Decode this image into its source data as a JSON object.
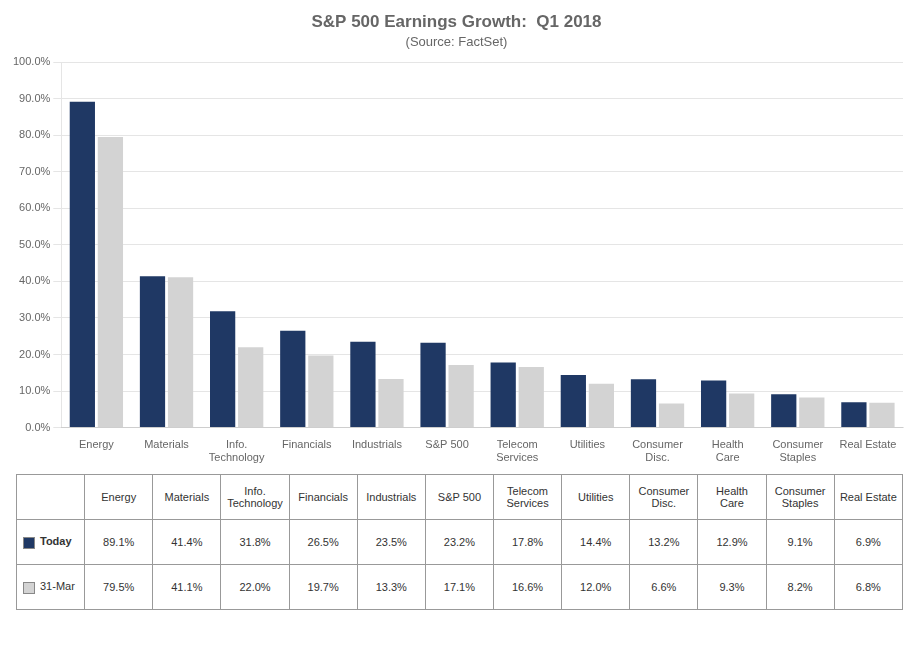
{
  "chart_data": {
    "type": "bar",
    "title": "S&P 500 Earnings Growth:  Q1 2018",
    "subtitle": "(Source: FactSet)",
    "categories": [
      "Energy",
      "Materials",
      "Info.\nTechnology",
      "Financials",
      "Industrials",
      "S&P 500",
      "Telecom\nServices",
      "Utilities",
      "Consumer\nDisc.",
      "Health\nCare",
      "Consumer\nStaples",
      "Real Estate"
    ],
    "series": [
      {
        "name": "Today",
        "color": "#1F3864",
        "values": [
          89.1,
          41.4,
          31.8,
          26.5,
          23.5,
          23.2,
          17.8,
          14.4,
          13.2,
          12.9,
          9.1,
          6.9
        ],
        "value_labels": [
          "89.1%",
          "41.4%",
          "31.8%",
          "26.5%",
          "23.5%",
          "23.2%",
          "17.8%",
          "14.4%",
          "13.2%",
          "12.9%",
          "9.1%",
          "6.9%"
        ]
      },
      {
        "name": "31-Mar",
        "color": "#D3D3D3",
        "values": [
          79.5,
          41.1,
          22.0,
          19.7,
          13.3,
          17.1,
          16.6,
          12.0,
          6.6,
          9.3,
          8.2,
          6.8
        ],
        "value_labels": [
          "79.5%",
          "41.1%",
          "22.0%",
          "19.7%",
          "13.3%",
          "17.1%",
          "16.6%",
          "12.0%",
          "6.6%",
          "9.3%",
          "8.2%",
          "6.8%"
        ]
      }
    ],
    "ylim": [
      0,
      100
    ],
    "yticks": [
      {
        "value": 0,
        "label": "0.0%"
      },
      {
        "value": 10,
        "label": "10.0%"
      },
      {
        "value": 20,
        "label": "20.0%"
      },
      {
        "value": 30,
        "label": "30.0%"
      },
      {
        "value": 40,
        "label": "40.0%"
      },
      {
        "value": 50,
        "label": "50.0%"
      },
      {
        "value": 60,
        "label": "60.0%"
      },
      {
        "value": 70,
        "label": "70.0%"
      },
      {
        "value": 80,
        "label": "80.0%"
      },
      {
        "value": 90,
        "label": "90.0%"
      },
      {
        "value": 100,
        "label": "100.0%"
      }
    ],
    "grid": true
  }
}
